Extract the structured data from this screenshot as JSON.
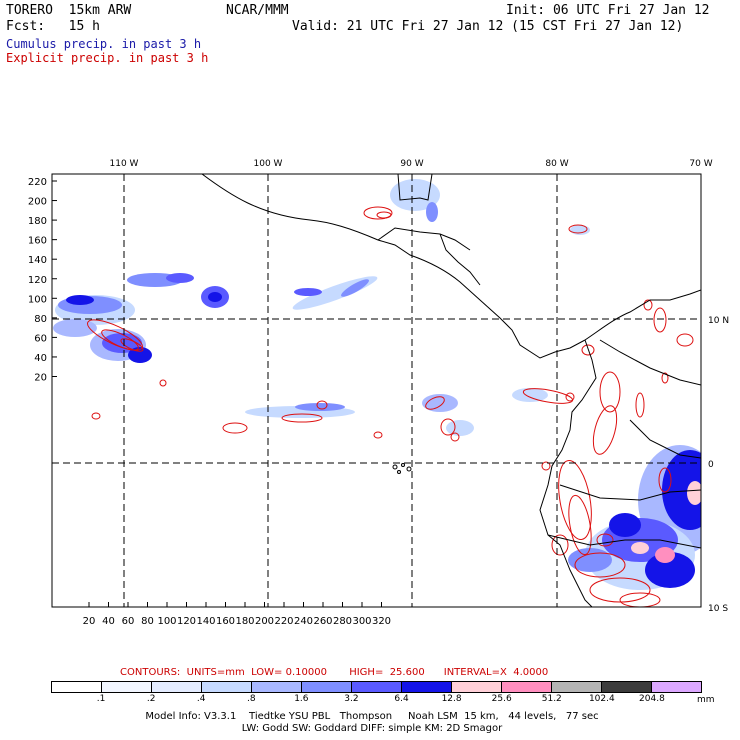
{
  "header": {
    "model": "TORERO",
    "resolution": "15km ARW",
    "org": "NCAR/MMM",
    "init": "Init: 06 UTC Fri 27 Jan 12",
    "fcst_label": "Fcst:",
    "fcst_value": "15 h",
    "valid": "Valid: 21 UTC Fri 27 Jan 12 (15 CST Fri 27 Jan 12)",
    "field1": "Cumulus precip. in past 3 h",
    "field2": "Explicit precip. in past 3 h",
    "field1_color": "#1a1aa8",
    "field2_color": "#cc0000"
  },
  "map": {
    "lon_labels": [
      "110 W",
      "100 W",
      "90 W",
      "80 W",
      "70 W"
    ],
    "lat_labels": [
      "10 N",
      "0",
      "10 S"
    ],
    "y_ticks": [
      "220",
      "200",
      "180",
      "160",
      "140",
      "120",
      "100",
      "80",
      "60",
      "40",
      "20"
    ],
    "x_ticks": [
      "20",
      "40",
      "60",
      "80",
      "100",
      "120",
      "140",
      "160",
      "180",
      "200",
      "220",
      "240",
      "260",
      "280",
      "300",
      "320"
    ]
  },
  "contours": {
    "text": "CONTOURS:  UNITS=mm  LOW= 0.10000       HIGH=  25.600      INTERVAL=X  4.0000"
  },
  "legend": {
    "labels": [
      ".1",
      ".2",
      ".4",
      ".8",
      "1.6",
      "3.2",
      "6.4",
      "12.8",
      "25.6",
      "51.2",
      "102.4",
      "204.8"
    ],
    "unit": "mm",
    "colors": [
      "#ffffff",
      "#f2f6ff",
      "#e4ecff",
      "#c6daff",
      "#a9b8ff",
      "#7f8fff",
      "#5a5aff",
      "#1414e8",
      "#ffd0d8",
      "#ff8fbf",
      "#b4b4b4",
      "#3c3c3c",
      "#dca8ff"
    ]
  },
  "model_info": {
    "line1": "Model Info: V3.3.1    Tiedtke YSU PBL   Thompson     Noah LSM  15 km,   44 levels,   77 sec",
    "line2": "LW: Godd SW: Goddard DIFF: simple KM: 2D Smagor"
  }
}
